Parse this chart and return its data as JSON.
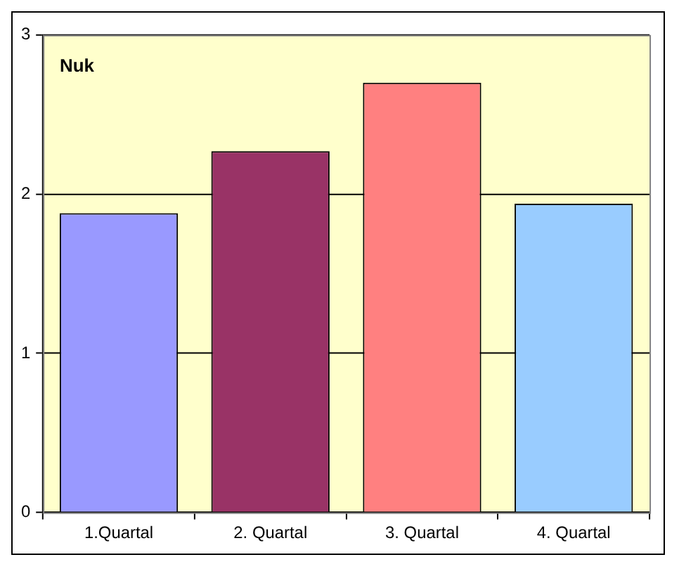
{
  "chart_data": {
    "type": "bar",
    "title": "Nuk",
    "categories": [
      "1.Quartal",
      "2. Quartal",
      "3. Quartal",
      "4. Quartal"
    ],
    "values": [
      1.88,
      2.27,
      2.7,
      1.94
    ],
    "colors": [
      "#9999ff",
      "#993366",
      "#ff8080",
      "#99ccff"
    ],
    "ylim": [
      0,
      3
    ],
    "yticks": [
      0,
      1,
      2,
      3
    ],
    "grid": "y",
    "legend": false
  }
}
